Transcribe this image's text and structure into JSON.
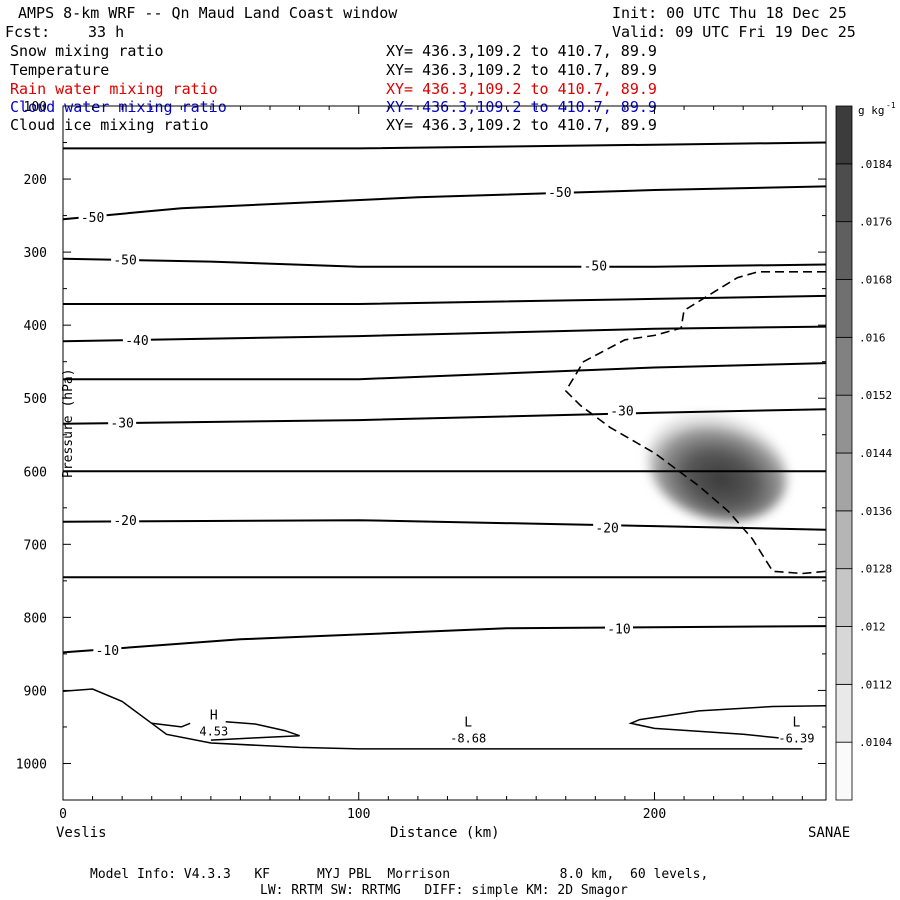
{
  "header": {
    "title": "AMPS 8-km WRF -- Qn Maud Land Coast window",
    "init": "Init: 00 UTC Thu 18 Dec 25",
    "fcst_label": "Fcst:",
    "fcst_value": "33 h",
    "valid": "Valid: 09 UTC Fri 19 Dec 25"
  },
  "fields": [
    {
      "name": "Snow mixing ratio",
      "xy": "XY= 436.3,109.2 to 410.7, 89.9",
      "color": "#000000"
    },
    {
      "name": "Temperature",
      "xy": "XY= 436.3,109.2 to 410.7, 89.9",
      "color": "#000000"
    },
    {
      "name": "Rain water mixing ratio",
      "xy": "XY= 436.3,109.2 to 410.7, 89.9",
      "color": "#dd0000"
    },
    {
      "name": "Cloud water mixing ratio",
      "xy": "XY= 436.3,109.2 to 410.7, 89.9",
      "color": "#0000cc"
    },
    {
      "name": "Cloud ice mixing ratio",
      "xy": "XY= 436.3,109.2 to 410.7, 89.9",
      "color": "#000000"
    }
  ],
  "footer": {
    "line1": "Model Info: V4.3.3   KF      MYJ PBL  Morrison              8.0 km,  60 levels,",
    "line2": "LW: RRTM SW: RRTMG   DIFF: simple KM: 2D Smagor"
  },
  "chart_data": {
    "type": "cross-section",
    "xlabel": "Distance (km)",
    "ylabel": "Pressure (hPa)",
    "xlim": [
      0,
      258
    ],
    "ylim": [
      1050,
      100
    ],
    "x_ticks": [
      0,
      100,
      200
    ],
    "y_ticks": [
      100,
      200,
      300,
      400,
      500,
      600,
      700,
      800,
      900,
      1000
    ],
    "left_endpoint": "Veslis",
    "right_endpoint": "SANAE",
    "colorbar": {
      "unit": "g kg",
      "unit_sup": "-1",
      "levels": [
        ".0104",
        ".0112",
        ".012",
        ".0128",
        ".0136",
        ".0144",
        ".0152",
        ".016",
        ".0168",
        ".0176",
        ".0184"
      ]
    },
    "temperature_contours": [
      {
        "points": [
          [
            0,
            158
          ],
          [
            100,
            158
          ],
          [
            200,
            153
          ],
          [
            258,
            150
          ]
        ]
      },
      {
        "points": [
          [
            0,
            255
          ],
          [
            40,
            240
          ],
          [
            120,
            225
          ],
          [
            200,
            215
          ],
          [
            258,
            210
          ]
        ],
        "label": "-50",
        "labels_at": [
          [
            10,
            252
          ],
          [
            168,
            218
          ]
        ]
      },
      {
        "points": [
          [
            0,
            309
          ],
          [
            50,
            313
          ],
          [
            100,
            320
          ],
          [
            200,
            320
          ],
          [
            258,
            317
          ]
        ],
        "label": "-50",
        "labels_at": [
          [
            21,
            310
          ],
          [
            180,
            318
          ]
        ]
      },
      {
        "points": [
          [
            0,
            371
          ],
          [
            100,
            371
          ],
          [
            200,
            364
          ],
          [
            258,
            360
          ]
        ]
      },
      {
        "points": [
          [
            0,
            422
          ],
          [
            100,
            415
          ],
          [
            200,
            405
          ],
          [
            258,
            402
          ]
        ],
        "label": "-40",
        "labels_at": [
          [
            25,
            420
          ]
        ]
      },
      {
        "points": [
          [
            0,
            474
          ],
          [
            100,
            474
          ],
          [
            200,
            458
          ],
          [
            258,
            452
          ]
        ]
      },
      {
        "points": [
          [
            0,
            535
          ],
          [
            100,
            530
          ],
          [
            200,
            520
          ],
          [
            258,
            515
          ]
        ],
        "label": "-30",
        "labels_at": [
          [
            20,
            533
          ],
          [
            189,
            517
          ]
        ]
      },
      {
        "points": [
          [
            0,
            600
          ],
          [
            258,
            600
          ]
        ]
      },
      {
        "points": [
          [
            0,
            669
          ],
          [
            100,
            667
          ],
          [
            200,
            675
          ],
          [
            258,
            680
          ]
        ],
        "label": "-20",
        "labels_at": [
          [
            21,
            667
          ],
          [
            184,
            677
          ]
        ]
      },
      {
        "points": [
          [
            0,
            745
          ],
          [
            258,
            745
          ]
        ]
      },
      {
        "points": [
          [
            0,
            848
          ],
          [
            60,
            830
          ],
          [
            150,
            815
          ],
          [
            258,
            812
          ]
        ],
        "label": "-10",
        "labels_at": [
          [
            15,
            845
          ],
          [
            188,
            815
          ]
        ]
      }
    ],
    "slp_contours": [
      {
        "points": [
          [
            0,
            901
          ],
          [
            10,
            898
          ],
          [
            20,
            915
          ],
          [
            30,
            945
          ],
          [
            35,
            960
          ],
          [
            50,
            972
          ],
          [
            80,
            978
          ],
          [
            100,
            980
          ],
          [
            200,
            980
          ],
          [
            250,
            980
          ]
        ]
      },
      {
        "points": [
          [
            30,
            945
          ],
          [
            40,
            950
          ],
          [
            43,
            945
          ]
        ]
      },
      {
        "points": [
          [
            55,
            943
          ],
          [
            65,
            946
          ],
          [
            75,
            955
          ],
          [
            80,
            962
          ],
          [
            65,
            965
          ],
          [
            50,
            968
          ]
        ]
      },
      {
        "points": [
          [
            258,
            921
          ],
          [
            240,
            922
          ],
          [
            215,
            928
          ],
          [
            195,
            940
          ],
          [
            192,
            945
          ],
          [
            200,
            952
          ],
          [
            230,
            960
          ],
          [
            242,
            965
          ]
        ]
      }
    ],
    "pressure_centers": [
      {
        "type": "H",
        "value": "4.53",
        "x": 51,
        "p": 945
      },
      {
        "type": "L",
        "value": "-8.68",
        "x": 137,
        "p": 955
      },
      {
        "type": "L",
        "value": "-6.39",
        "x": 248,
        "p": 955
      }
    ],
    "dashed_contour": {
      "points": [
        [
          258,
          327
        ],
        [
          235,
          327
        ],
        [
          228,
          335
        ],
        [
          218,
          360
        ],
        [
          210,
          380
        ],
        [
          209,
          404
        ],
        [
          200,
          414
        ],
        [
          190,
          420
        ],
        [
          176,
          450
        ],
        [
          170,
          490
        ],
        [
          175,
          510
        ],
        [
          185,
          540
        ],
        [
          200,
          575
        ],
        [
          215,
          620
        ],
        [
          225,
          655
        ],
        [
          233,
          692
        ],
        [
          240,
          737
        ],
        [
          250,
          740
        ],
        [
          258,
          737
        ]
      ]
    },
    "shaded_blob": {
      "center_x": 220,
      "center_p": 600,
      "peak": 0.0184
    }
  }
}
